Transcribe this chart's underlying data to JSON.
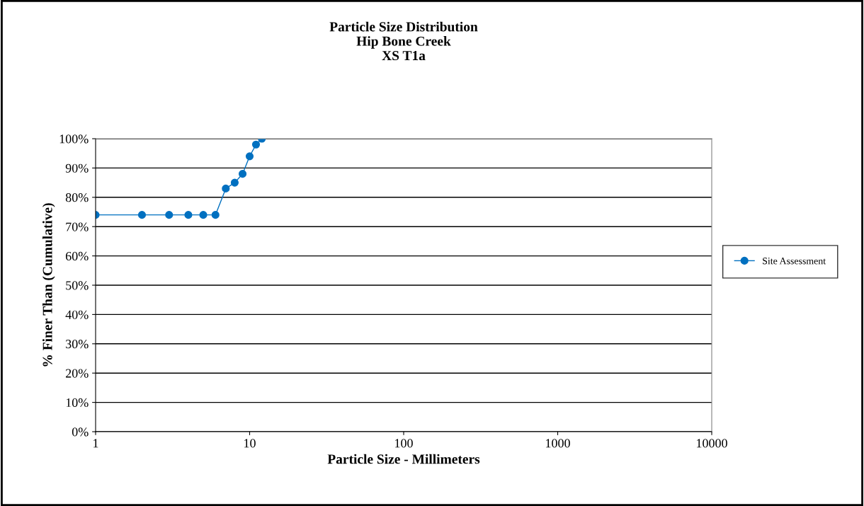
{
  "chart_data": {
    "type": "line",
    "title": "Particle Size Distribution\nHip Bone Creek\nXS T1a",
    "xlabel": "Particle Size - Millimeters",
    "ylabel": "% Finer Than (Cumulative)",
    "x": [
      1,
      2,
      3,
      4,
      5,
      6,
      7,
      8,
      9,
      10,
      11,
      12
    ],
    "series": [
      {
        "name": "Site Assessment",
        "color": "#0070c0",
        "values": [
          74,
          74,
          74,
          74,
          74,
          74,
          83,
          85,
          88,
          94,
          98,
          100
        ]
      }
    ],
    "log": "x",
    "xlim": [
      1,
      10000
    ],
    "xticks": [
      1,
      10,
      100,
      1000,
      10000
    ],
    "ylim": [
      0,
      100
    ],
    "yticks": [
      {
        "value": 0,
        "label": "0%"
      },
      {
        "value": 10,
        "label": "10%"
      },
      {
        "value": 20,
        "label": "20%"
      },
      {
        "value": 30,
        "label": "30%"
      },
      {
        "value": 40,
        "label": "40%"
      },
      {
        "value": 50,
        "label": "50%"
      },
      {
        "value": 60,
        "label": "60%"
      },
      {
        "value": 70,
        "label": "70%"
      },
      {
        "value": 80,
        "label": "80%"
      },
      {
        "value": 90,
        "label": "90%"
      },
      {
        "value": 100,
        "label": "100%"
      }
    ],
    "grid": "y",
    "legend": "right",
    "marker": "circle",
    "line_style": "solid"
  }
}
